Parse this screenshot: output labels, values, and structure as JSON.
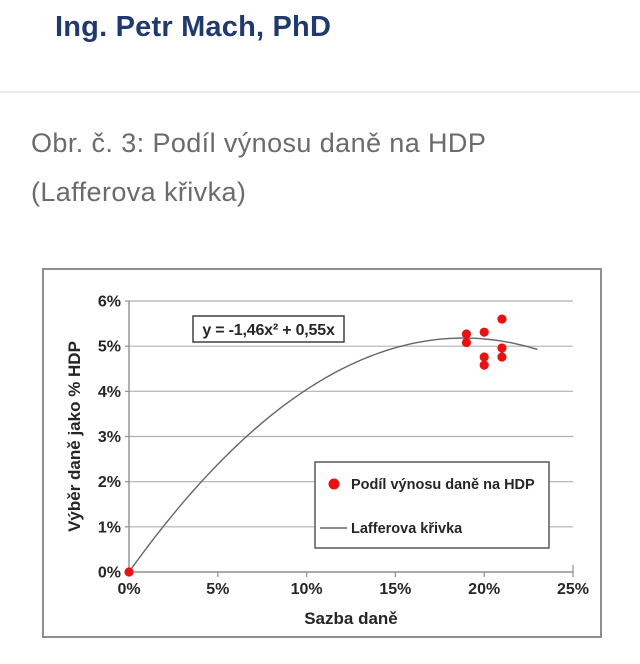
{
  "page": {
    "title": "Ing. Petr Mach, PhD",
    "caption_line1": "Obr. č. 3: Podíl výnosu daně na HDP",
    "caption_line2": "(Lafferova křivka)"
  },
  "colors": {
    "title_navy": "#213a6e",
    "caption_gray": "#6b6b6b",
    "point_red": "#e81212",
    "curve_gray": "#666666",
    "grid_gray": "#b0b0b0",
    "axis_gray": "#8f8f8f",
    "chart_text": "#262626",
    "frame_border": "#8d8d8d",
    "divider_gray": "#ededed",
    "box_border": "#404040",
    "legend_border": "#595959"
  },
  "chart_data": {
    "type": "scatter",
    "title": "",
    "xlabel": "Sazba daně",
    "ylabel": "Výběr daně jako % HDP",
    "xlim": [
      0,
      25
    ],
    "ylim": [
      0,
      6
    ],
    "x_tick_values": [
      0,
      5,
      10,
      15,
      20,
      25
    ],
    "x_tick_labels": [
      "0%",
      "5%",
      "10%",
      "15%",
      "20%",
      "25%"
    ],
    "y_tick_values": [
      0,
      1,
      2,
      3,
      4,
      5,
      6
    ],
    "y_tick_labels": [
      "0%",
      "1%",
      "2%",
      "3%",
      "4%",
      "5%",
      "6%"
    ],
    "grid": "horizontal-only",
    "equation_label": "y = -1,46x² + 0,55x",
    "series": [
      {
        "name": "Podíl výnosu daně na HDP",
        "kind": "scatter",
        "color": "#e81212",
        "points": [
          [
            0,
            0
          ],
          [
            19,
            5.27
          ],
          [
            19,
            5.08
          ],
          [
            20,
            5.31
          ],
          [
            20,
            4.76
          ],
          [
            20,
            4.58
          ],
          [
            21,
            5.6
          ],
          [
            21,
            4.96
          ],
          [
            21,
            4.76
          ]
        ]
      },
      {
        "name": "Lafferova křivka",
        "kind": "line",
        "color": "#666666",
        "equation": {
          "a": -1.46,
          "b": 0.55
        },
        "x_range": [
          0,
          23
        ]
      }
    ],
    "legend": {
      "position": "inside-bottom-right",
      "entries": [
        "Podíl výnosu daně na HDP",
        "Lafferova křivka"
      ]
    }
  }
}
